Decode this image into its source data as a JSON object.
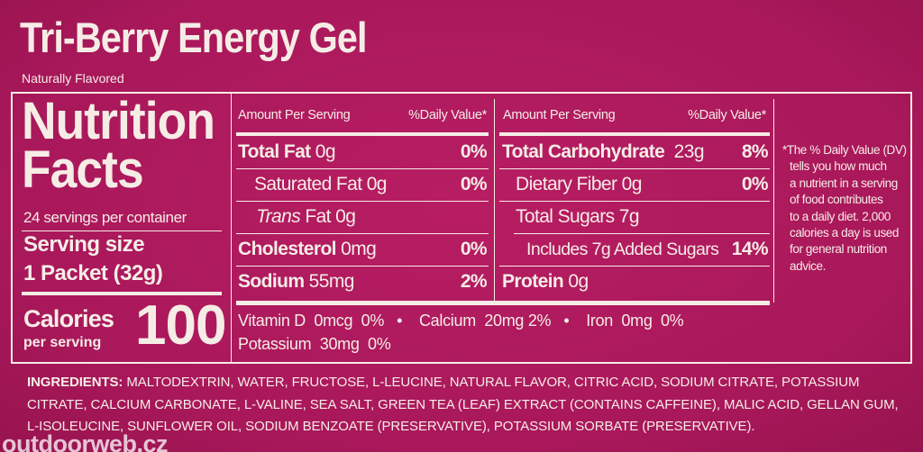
{
  "header": {
    "title": "Tri-Berry Energy Gel",
    "subtitle": "Naturally Flavored"
  },
  "facts": {
    "heading": [
      "Nutrition",
      "Facts"
    ],
    "servings": "24 servings per container",
    "serving_size_label": "Serving size",
    "serving_size": "1 Packet (32g)",
    "calories_label": "Calories",
    "calories_sub": "per serving",
    "calories": 100
  },
  "table_left": {
    "header": [
      "Amount Per Serving",
      "%Daily Value*"
    ],
    "rows": [
      {
        "name": "Total Fat",
        "amount": "0g",
        "dv": "0%"
      },
      {
        "name": "Saturated Fat",
        "amount": "0g",
        "dv": "0%"
      },
      {
        "name_italic": "Trans",
        "name": "Fat",
        "amount": "0g"
      },
      {
        "name": "Cholesterol",
        "amount": "0mg",
        "dv": "0%"
      },
      {
        "name": "Sodium",
        "amount": "55mg",
        "dv": "2%"
      }
    ]
  },
  "table_right": {
    "header": [
      "Amount Per Serving",
      "%Daily Value*"
    ],
    "rows": [
      {
        "name": "Total Carbohydrate",
        "amount": "23g",
        "dv": "8%"
      },
      {
        "name": "Dietary Fiber",
        "amount": "0g",
        "dv": "0%"
      },
      {
        "name": "Total Sugars",
        "amount": "7g"
      },
      {
        "name": "Includes 7g Added Sugars",
        "dv": "14%"
      },
      {
        "name": "Protein",
        "amount": "0g"
      }
    ]
  },
  "vitamins": [
    {
      "name": "Vitamin D",
      "amount": "0mcg",
      "dv": "0%"
    },
    {
      "name": "Calcium",
      "amount": "20mg",
      "dv": "2%"
    },
    {
      "name": "Iron",
      "amount": "0mg",
      "dv": "0%"
    },
    {
      "name": "Potassium",
      "amount": "30mg",
      "dv": "0%"
    }
  ],
  "footnote": [
    "*The % Daily Value (DV)",
    "tells you how much",
    "a nutrient in a serving",
    "of food contributes",
    "to a daily diet. 2,000",
    "calories a day is used",
    "for general nutrition",
    "advice."
  ],
  "ingredients": {
    "label": "INGREDIENTS:",
    "text": "MALTODEXTRIN, WATER, FRUCTOSE, L-LEUCINE, NATURAL FLAVOR, CITRIC ACID, SODIUM CITRATE, POTASSIUM CITRATE, CALCIUM CARBONATE, L-VALINE, SEA SALT, GREEN TEA (LEAF) EXTRACT (CONTAINS CAFFEINE), MALIC ACID, GELLAN GUM, L-ISOLEUCINE, SUNFLOWER OIL, SODIUM BENZOATE (PRESERVATIVE), POTASSIUM SORBATE (PRESERVATIVE)."
  },
  "watermark": "outdoorweb.cz"
}
